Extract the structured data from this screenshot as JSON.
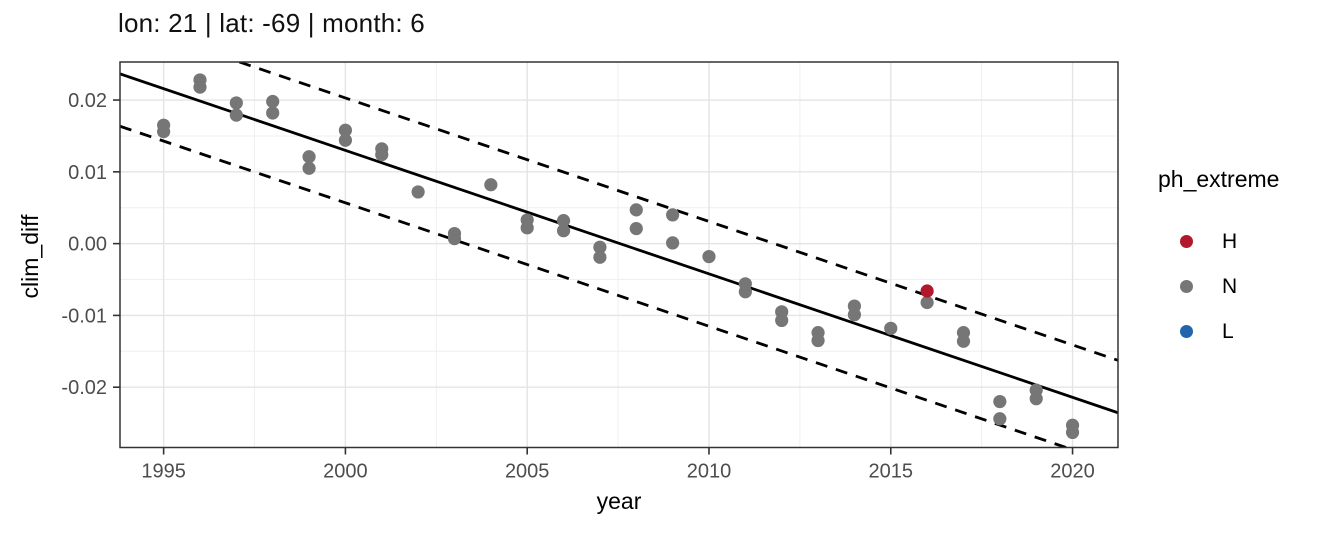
{
  "figure": {
    "title": "lon: 21 | lat: -69 | month: 6",
    "background": "#ffffff"
  },
  "chart_data": {
    "type": "scatter",
    "title": "lon: 21 | lat: -69 | month: 6",
    "xlabel": "year",
    "ylabel": "clim_diff",
    "xlim": [
      1993.8,
      2021.25
    ],
    "ylim": [
      -0.0284,
      0.0253
    ],
    "x_ticks": [
      1995,
      2000,
      2005,
      2010,
      2015,
      2020
    ],
    "x_tick_labels": [
      "1995",
      "2000",
      "2005",
      "2010",
      "2015",
      "2020"
    ],
    "y_ticks": [
      0.02,
      0.01,
      0.0,
      -0.01,
      -0.02
    ],
    "y_tick_labels": [
      "0.02",
      "0.01",
      "0.00",
      "-0.01",
      "-0.02"
    ],
    "x_minor_ticks": [
      1997.5,
      2002.5,
      2007.5,
      2012.5,
      2017.5
    ],
    "y_minor_ticks": [
      0.015,
      0.005,
      -0.005,
      -0.015
    ],
    "grid": true,
    "legend": {
      "title": "ph_extreme",
      "position": "right",
      "entries": [
        {
          "label": "H",
          "color": "#B2182B"
        },
        {
          "label": "N",
          "color": "#767676"
        },
        {
          "label": "L",
          "color": "#2166AC"
        }
      ]
    },
    "series": [
      {
        "name": "N",
        "color": "#767676",
        "points": [
          [
            1995,
            0.0165
          ],
          [
            1995,
            0.0156
          ],
          [
            1996,
            0.0228
          ],
          [
            1996,
            0.0218
          ],
          [
            1997,
            0.0196
          ],
          [
            1997,
            0.0179
          ],
          [
            1998,
            0.0198
          ],
          [
            1998,
            0.0182
          ],
          [
            1999,
            0.0121
          ],
          [
            1999,
            0.0105
          ],
          [
            2000,
            0.0158
          ],
          [
            2000,
            0.0144
          ],
          [
            2001,
            0.0132
          ],
          [
            2001,
            0.0124
          ],
          [
            2002,
            0.0072
          ],
          [
            2003,
            0.0014
          ],
          [
            2003,
            0.0007
          ],
          [
            2004,
            0.0082
          ],
          [
            2005,
            0.0033
          ],
          [
            2005,
            0.0022
          ],
          [
            2006,
            0.0032
          ],
          [
            2006,
            0.0018
          ],
          [
            2007,
            -0.0005
          ],
          [
            2007,
            -0.0019
          ],
          [
            2008,
            0.0047
          ],
          [
            2008,
            0.0021
          ],
          [
            2009,
            0.004
          ],
          [
            2009,
            0.0001
          ],
          [
            2010,
            -0.0018
          ],
          [
            2011,
            -0.0056
          ],
          [
            2011,
            -0.0067
          ],
          [
            2012,
            -0.0095
          ],
          [
            2012,
            -0.0107
          ],
          [
            2013,
            -0.0124
          ],
          [
            2013,
            -0.0135
          ],
          [
            2014,
            -0.0087
          ],
          [
            2014,
            -0.0099
          ],
          [
            2015,
            -0.0118
          ],
          [
            2016,
            -0.0082
          ],
          [
            2017,
            -0.0124
          ],
          [
            2017,
            -0.0136
          ],
          [
            2018,
            -0.022
          ],
          [
            2018,
            -0.0244
          ],
          [
            2019,
            -0.0204
          ],
          [
            2019,
            -0.0216
          ],
          [
            2020,
            -0.0253
          ],
          [
            2020,
            -0.0263
          ]
        ]
      },
      {
        "name": "H",
        "color": "#B2182B",
        "points": [
          [
            2016,
            -0.0066
          ]
        ]
      },
      {
        "name": "L",
        "color": "#2166AC",
        "points": []
      }
    ],
    "trend_line": {
      "style": "solid",
      "x": [
        1993.8,
        2021.25
      ],
      "y": [
        0.02365,
        -0.02356
      ]
    },
    "interval_lines": {
      "style": "dashed",
      "offset": 0.0073
    }
  }
}
